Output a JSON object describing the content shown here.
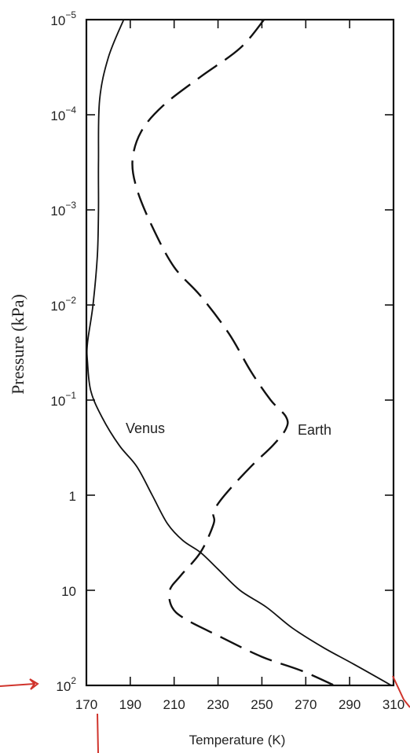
{
  "chart_data": {
    "type": "line",
    "xlabel": "Temperature (K)",
    "ylabel": "Pressure (kPa)",
    "xlim": [
      170,
      310
    ],
    "ylim_log10": [
      -5,
      2
    ],
    "yscale": "log",
    "x_ticks": [
      "170",
      "190",
      "210",
      "230",
      "250",
      "270",
      "290",
      "310"
    ],
    "y_ticks": [
      {
        "base": "10",
        "exp": "−5"
      },
      {
        "base": "10",
        "exp": "−4"
      },
      {
        "base": "10",
        "exp": "−3"
      },
      {
        "base": "10",
        "exp": "−2"
      },
      {
        "base": "10",
        "exp": "−1"
      },
      {
        "base": "1",
        "exp": ""
      },
      {
        "base": "10",
        "exp": ""
      },
      {
        "base": "10",
        "exp": "2"
      }
    ],
    "grid": false,
    "series": [
      {
        "name": "Venus",
        "style": "solid",
        "color": "#111111",
        "points": [
          [
            187,
            1e-05
          ],
          [
            180,
            2.5e-05
          ],
          [
            176,
            7e-05
          ],
          [
            175.5,
            0.0003
          ],
          [
            175.5,
            0.001
          ],
          [
            175,
            0.003
          ],
          [
            173,
            0.01
          ],
          [
            170.5,
            0.025
          ],
          [
            170.5,
            0.04
          ],
          [
            172,
            0.08
          ],
          [
            177,
            0.15
          ],
          [
            185,
            0.3
          ],
          [
            193,
            0.5
          ],
          [
            200,
            1
          ],
          [
            207,
            2
          ],
          [
            214,
            3
          ],
          [
            222,
            4
          ],
          [
            230,
            6
          ],
          [
            240,
            10
          ],
          [
            252,
            15
          ],
          [
            264,
            25
          ],
          [
            278,
            40
          ],
          [
            292,
            60
          ],
          [
            309,
            100
          ]
        ]
      },
      {
        "name": "Earth",
        "style": "dashed",
        "color": "#111111",
        "points": [
          [
            251,
            1e-05
          ],
          [
            240,
            2e-05
          ],
          [
            222,
            4e-05
          ],
          [
            205,
            8e-05
          ],
          [
            195,
            0.00015
          ],
          [
            191,
            0.0003
          ],
          [
            193,
            0.0006
          ],
          [
            200,
            0.0015
          ],
          [
            210,
            0.004
          ],
          [
            222,
            0.008
          ],
          [
            235,
            0.02
          ],
          [
            245,
            0.05
          ],
          [
            254,
            0.1
          ],
          [
            261,
            0.15
          ],
          [
            261,
            0.2
          ],
          [
            255,
            0.3
          ],
          [
            245,
            0.5
          ],
          [
            233,
            1
          ],
          [
            228,
            1.5
          ],
          [
            228,
            2
          ],
          [
            222,
            4
          ],
          [
            213,
            7
          ],
          [
            208,
            10
          ],
          [
            209,
            15
          ],
          [
            215,
            20
          ],
          [
            230,
            30
          ],
          [
            250,
            50
          ],
          [
            268,
            70
          ],
          [
            283,
            100
          ]
        ]
      }
    ]
  }
}
